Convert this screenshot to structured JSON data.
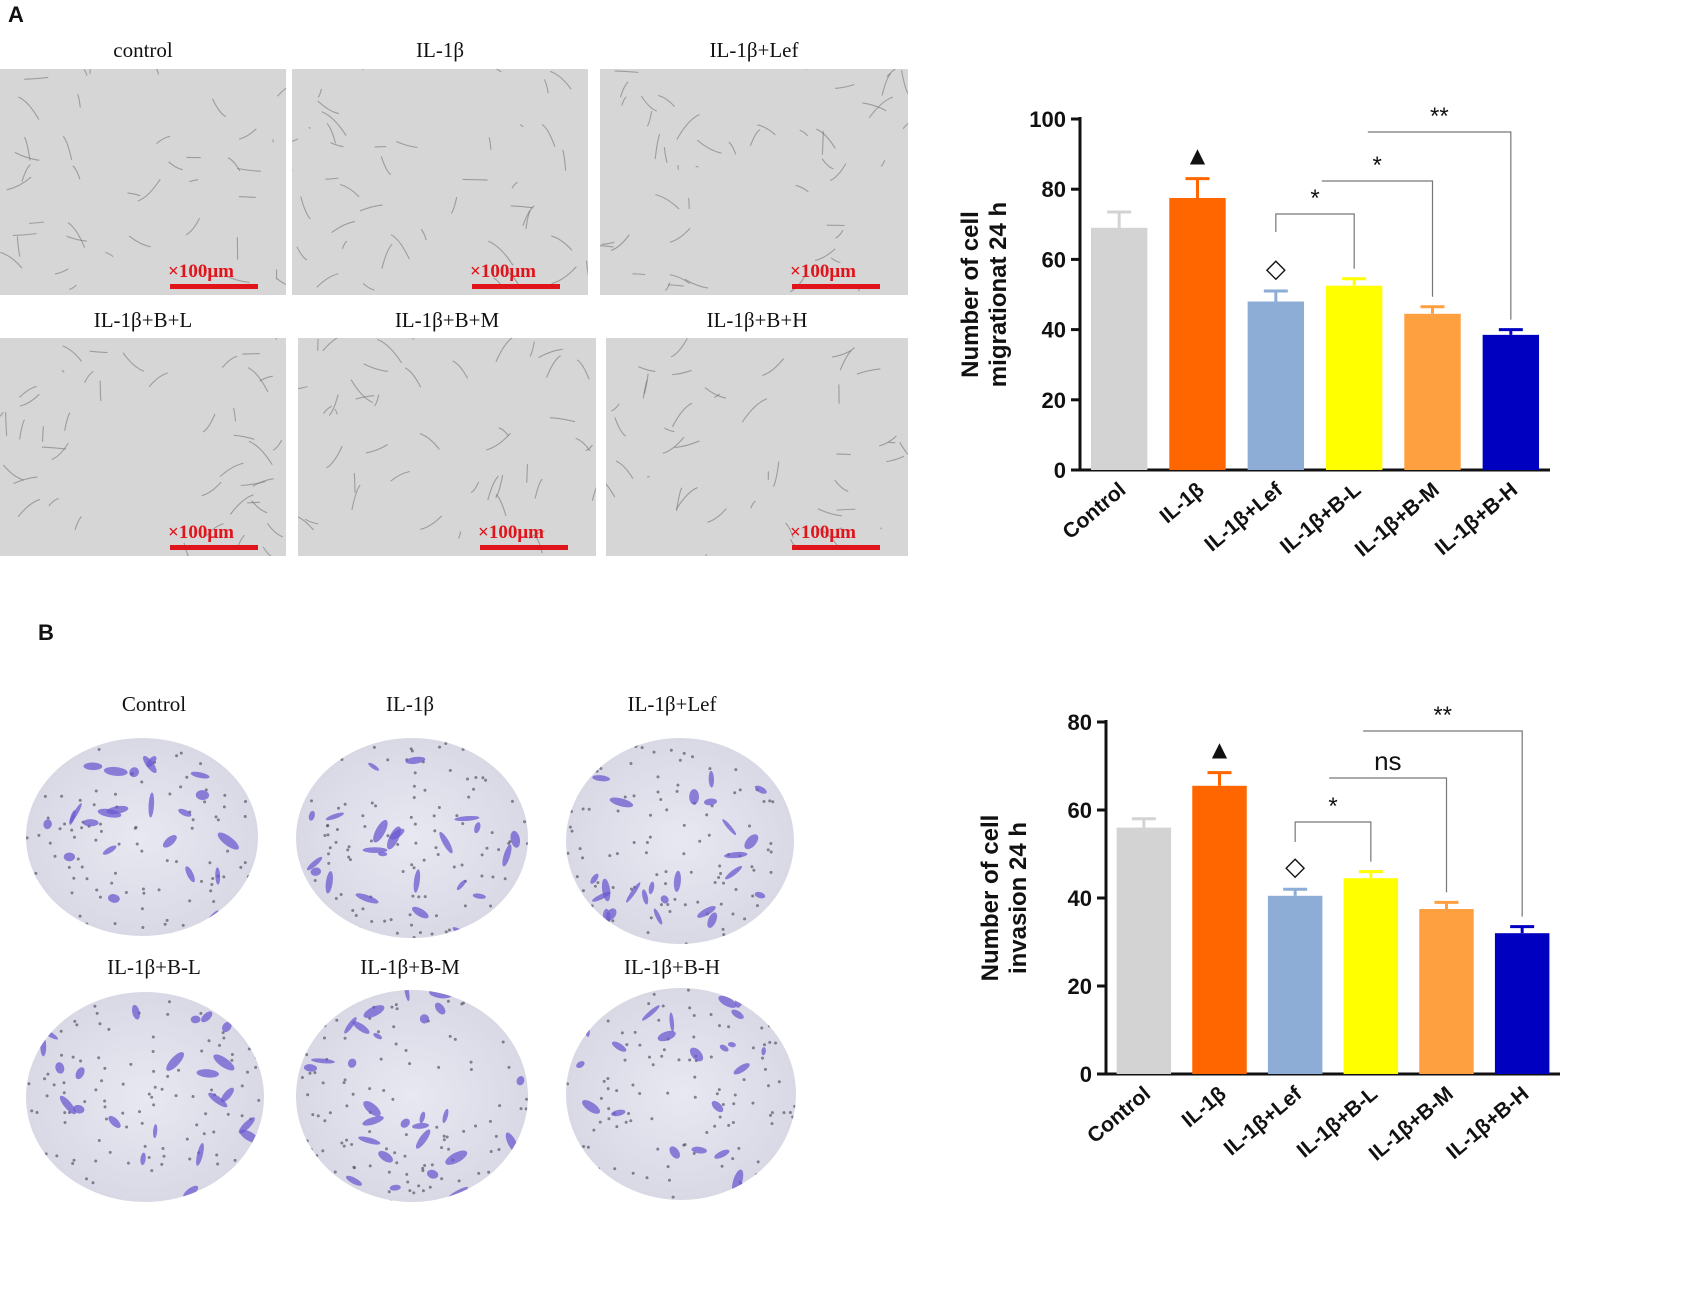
{
  "panel_a": {
    "letter": "A",
    "images": [
      {
        "label": "control",
        "scale": "×100μm"
      },
      {
        "label": "IL-1β",
        "scale": "×100μm"
      },
      {
        "label": "IL-1β+Lef",
        "scale": "×100μm"
      },
      {
        "label": "IL-1β+B+L",
        "scale": "×100μm"
      },
      {
        "label": "IL-1β+B+M",
        "scale": "×100μm"
      },
      {
        "label": "IL-1β+B+H",
        "scale": "×100μm"
      }
    ]
  },
  "panel_b": {
    "letter": "B",
    "images": [
      {
        "label": "Control"
      },
      {
        "label": "IL-1β"
      },
      {
        "label": "IL-1β+Lef"
      },
      {
        "label": "IL-1β+B-L"
      },
      {
        "label": "IL-1β+B-M"
      },
      {
        "label": "IL-1β+B-H"
      }
    ]
  },
  "colors": {
    "control": "#d3d3d3",
    "il1b": "#ff6600",
    "lef": "#8eadd6",
    "bl": "#ffff00",
    "bm": "#ffa040",
    "bh": "#0000c0",
    "scale_red": "#e0141b"
  },
  "chart_data": [
    {
      "type": "bar",
      "categories": [
        "Control",
        "IL-1β",
        "IL-1β+Lef",
        "IL-1β+B-L",
        "IL-1β+B-M",
        "IL-1β+B-H"
      ],
      "values": [
        69,
        77.5,
        48,
        52.5,
        44.5,
        38.5
      ],
      "errors": [
        4.5,
        5.5,
        3,
        2,
        2,
        1.5
      ],
      "colors": [
        "#d3d3d3",
        "#ff6600",
        "#8eadd6",
        "#ffff00",
        "#ffa040",
        "#0000c0"
      ],
      "ylabel_lines": [
        "Number of cell",
        "migrationat 24 h"
      ],
      "ylim": [
        0,
        100
      ],
      "yticks": [
        0,
        20,
        40,
        60,
        80,
        100
      ],
      "markers": [
        {
          "category": "IL-1β",
          "symbol": "▲"
        },
        {
          "category": "IL-1β+Lef",
          "symbol": "◇"
        }
      ],
      "comparisons": [
        {
          "from": "IL-1β+Lef",
          "to": "IL-1β+B-L",
          "label": "*"
        },
        {
          "from": "IL-1β+Lef",
          "to": "IL-1β+B-M",
          "label": "*"
        },
        {
          "from": "IL-1β+Lef",
          "to": "IL-1β+B-H",
          "label": "**"
        }
      ]
    },
    {
      "type": "bar",
      "categories": [
        "Control",
        "IL-1β",
        "IL-1β+Lef",
        "IL-1β+B-L",
        "IL-1β+B-M",
        "IL-1β+B-H"
      ],
      "values": [
        56,
        65.5,
        40.5,
        44.5,
        37.5,
        32
      ],
      "errors": [
        2,
        3,
        1.5,
        1.5,
        1.5,
        1.5
      ],
      "colors": [
        "#d3d3d3",
        "#ff6600",
        "#8eadd6",
        "#ffff00",
        "#ffa040",
        "#0000c0"
      ],
      "ylabel_lines": [
        "Number of cell",
        "invasion 24 h"
      ],
      "ylim": [
        0,
        80
      ],
      "yticks": [
        0,
        20,
        40,
        60,
        80
      ],
      "markers": [
        {
          "category": "IL-1β",
          "symbol": "▲"
        },
        {
          "category": "IL-1β+Lef",
          "symbol": "◇"
        }
      ],
      "comparisons": [
        {
          "from": "IL-1β+Lef",
          "to": "IL-1β+B-L",
          "label": "*"
        },
        {
          "from": "IL-1β+Lef",
          "to": "IL-1β+B-M",
          "label": "ns"
        },
        {
          "from": "IL-1β+Lef",
          "to": "IL-1β+B-H",
          "label": "**"
        }
      ]
    }
  ]
}
